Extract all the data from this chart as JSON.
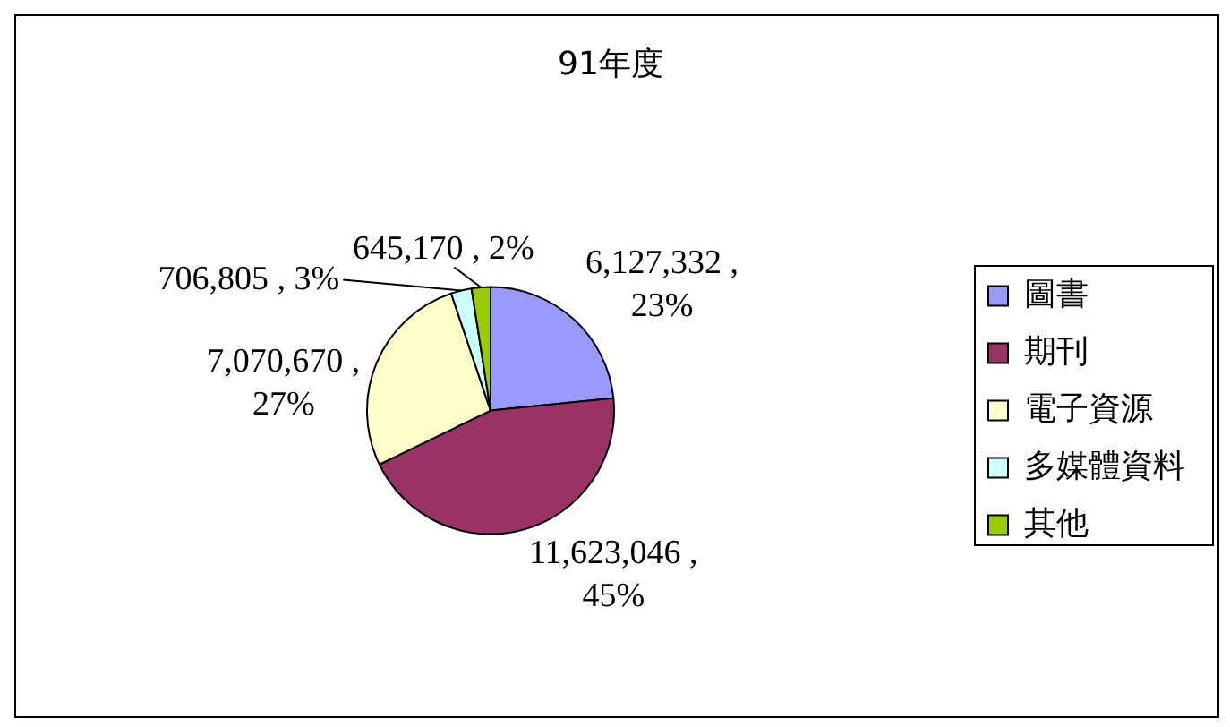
{
  "chart_data": {
    "type": "pie",
    "title": "91年度",
    "categories": [
      "圖書",
      "期刊",
      "電子資源",
      "多媒體資料",
      "其他"
    ],
    "values": [
      6127332,
      11623046,
      7070670,
      706805,
      645170
    ],
    "colors": [
      "#9999ff",
      "#993366",
      "#ffffcc",
      "#ccffff",
      "#99cc00"
    ],
    "value_labels": [
      "6,127,332 , 23%",
      "11,623,046 , 45%",
      "7,070,670 , 27%",
      "706,805 , 3%",
      "645,170 , 2%"
    ],
    "legend": "right"
  }
}
